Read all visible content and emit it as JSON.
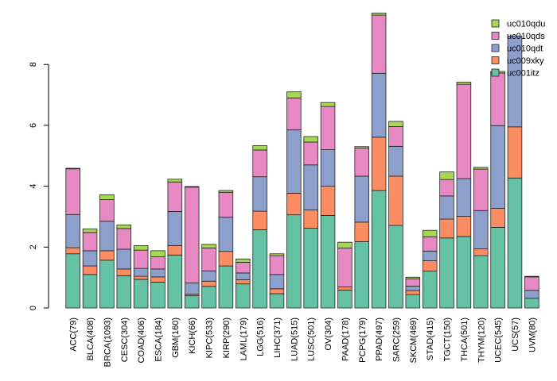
{
  "chart_data": {
    "type": "bar",
    "stacked": true,
    "title": "",
    "xlabel": "",
    "ylabel": "",
    "ylim": [
      0,
      9.7
    ],
    "yticks": [
      0,
      2,
      4,
      6,
      8
    ],
    "legend_position": "top-right",
    "categories": [
      "ACC(79)",
      "BLCA(408)",
      "BRCA(1093)",
      "CESC(304)",
      "COAD(406)",
      "ESCA(184)",
      "GBM(160)",
      "KICH(66)",
      "KIPC(533)",
      "KIRP(290)",
      "LAML(179)",
      "LGG(516)",
      "LIHC(371)",
      "LUAD(515)",
      "LUSC(501)",
      "OV(304)",
      "PAAD(178)",
      "PCPG(179)",
      "PPAD(497)",
      "SARC(259)",
      "SKCM(469)",
      "STAD(415)",
      "TGCT(150)",
      "THCA(501)",
      "THYM(120)",
      "UCEC(545)",
      "UCS(57)",
      "UVM(80)"
    ],
    "series": [
      {
        "name": "uc001itz",
        "color": "#66c2a5",
        "values": [
          1.78,
          1.1,
          1.57,
          1.06,
          0.94,
          0.85,
          1.74,
          0.4,
          0.71,
          1.38,
          0.79,
          2.57,
          0.47,
          3.06,
          2.62,
          3.04,
          0.59,
          2.18,
          3.86,
          2.71,
          0.44,
          1.21,
          2.3,
          2.35,
          1.72,
          2.65,
          4.27,
          0.32
        ]
      },
      {
        "name": "uc009xky",
        "color": "#fc8d62",
        "values": [
          0.2,
          0.28,
          0.31,
          0.22,
          0.1,
          0.17,
          0.31,
          0.05,
          0.17,
          0.48,
          0.14,
          0.61,
          0.16,
          0.71,
          0.6,
          0.96,
          0.1,
          0.64,
          1.75,
          1.62,
          0.13,
          0.34,
          0.62,
          0.66,
          0.22,
          0.62,
          1.68,
          0.0
        ]
      },
      {
        "name": "uc010qdt",
        "color": "#8da0cb",
        "values": [
          1.09,
          0.5,
          0.97,
          0.65,
          0.26,
          0.26,
          1.12,
          0.37,
          0.34,
          1.12,
          0.22,
          1.13,
          0.47,
          2.08,
          1.48,
          1.2,
          0.0,
          1.51,
          2.1,
          0.98,
          0.15,
          0.32,
          0.76,
          1.24,
          1.26,
          2.72,
          2.98,
          0.26
        ]
      },
      {
        "name": "uc010qds",
        "color": "#e78ac3",
        "values": [
          1.5,
          0.6,
          0.71,
          0.68,
          0.6,
          0.4,
          0.97,
          3.15,
          0.75,
          0.82,
          0.35,
          0.88,
          0.62,
          1.05,
          0.75,
          1.42,
          1.28,
          0.92,
          1.91,
          0.65,
          0.24,
          0.47,
          0.54,
          3.1,
          1.36,
          1.73,
          0.0,
          0.44
        ]
      },
      {
        "name": "uc010qdu",
        "color": "#a6d854",
        "values": [
          0.02,
          0.12,
          0.16,
          0.12,
          0.15,
          0.2,
          0.09,
          0.02,
          0.12,
          0.06,
          0.11,
          0.14,
          0.06,
          0.2,
          0.18,
          0.13,
          0.19,
          0.05,
          0.07,
          0.17,
          0.05,
          0.21,
          0.25,
          0.07,
          0.06,
          0.05,
          0.0,
          0.02
        ]
      }
    ]
  }
}
